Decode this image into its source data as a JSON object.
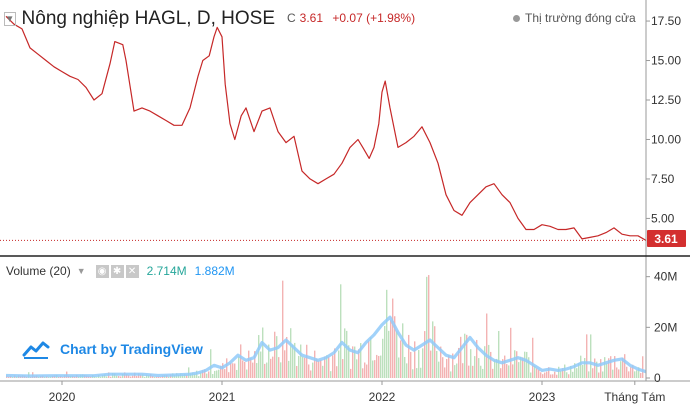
{
  "header": {
    "title": "Nông nghiệp HAGL, D, HOSE",
    "close_label": "C",
    "close_value": "3.61",
    "change": "+0.07 (+1.98%)",
    "market_status": "Thị trường đóng cửa"
  },
  "volume_header": {
    "label": "Volume (20)",
    "value1": "2.714M",
    "value2": "1.882M"
  },
  "watermark": "Chart by TradingView",
  "colors": {
    "price_line": "#c62828",
    "last_price_badge": "#d32f2f",
    "volume_ma": "#90caf9",
    "volume_up": "#a5d6a7",
    "volume_down": "#ef9a9a"
  },
  "chart_data": {
    "type": "line",
    "title": "Nông nghiệp HAGL, D, HOSE",
    "x_tick_labels": [
      "2020",
      "2021",
      "2022",
      "2023",
      "Tháng Tám"
    ],
    "x_range": [
      2019.65,
      2023.65
    ],
    "price_axis": {
      "ticks": [
        17.5,
        15.0,
        12.5,
        10.0,
        7.5,
        5.0
      ],
      "tick_labels": [
        "17.50",
        "15.00",
        "12.50",
        "10.00",
        "7.50",
        "5.00"
      ],
      "ylim": [
        3.0,
        18.2
      ]
    },
    "last_price": 3.61,
    "last_price_label": "3.61",
    "price_series": {
      "name": "Close",
      "x": [
        2019.65,
        2019.7,
        2019.75,
        2019.8,
        2019.85,
        2019.9,
        2019.95,
        2020.0,
        2020.05,
        2020.1,
        2020.15,
        2020.2,
        2020.25,
        2020.3,
        2020.33,
        2020.38,
        2020.4,
        2020.45,
        2020.5,
        2020.55,
        2020.6,
        2020.65,
        2020.7,
        2020.75,
        2020.8,
        2020.85,
        2020.88,
        2020.92,
        2020.95,
        2020.97,
        2021.0,
        2021.02,
        2021.05,
        2021.08,
        2021.12,
        2021.15,
        2021.2,
        2021.25,
        2021.3,
        2021.35,
        2021.4,
        2021.45,
        2021.5,
        2021.55,
        2021.6,
        2021.65,
        2021.7,
        2021.75,
        2021.8,
        2021.85,
        2021.88,
        2021.92,
        2021.95,
        2021.98,
        2022.0,
        2022.02,
        2022.05,
        2022.1,
        2022.15,
        2022.2,
        2022.25,
        2022.3,
        2022.35,
        2022.4,
        2022.45,
        2022.5,
        2022.55,
        2022.6,
        2022.65,
        2022.7,
        2022.75,
        2022.8,
        2022.85,
        2022.9,
        2022.95,
        2023.0,
        2023.05,
        2023.1,
        2023.15,
        2023.2,
        2023.25,
        2023.3,
        2023.35,
        2023.4,
        2023.45,
        2023.5,
        2023.55,
        2023.6,
        2023.65
      ],
      "y": [
        17.8,
        17.3,
        17.0,
        15.8,
        15.4,
        15.0,
        14.6,
        14.3,
        14.0,
        13.8,
        13.3,
        12.5,
        12.9,
        14.8,
        16.2,
        16.0,
        15.0,
        11.8,
        12.0,
        11.8,
        11.5,
        11.2,
        10.9,
        10.9,
        12.0,
        14.0,
        15.0,
        15.3,
        16.5,
        17.1,
        16.5,
        13.5,
        11.0,
        10.0,
        11.5,
        12.0,
        10.5,
        11.8,
        12.0,
        10.5,
        9.8,
        10.2,
        8.0,
        7.5,
        7.2,
        7.5,
        7.8,
        8.5,
        9.5,
        10.0,
        9.5,
        8.8,
        9.5,
        11.0,
        13.0,
        13.7,
        12.0,
        9.5,
        9.8,
        10.2,
        10.8,
        9.8,
        8.5,
        6.5,
        5.5,
        5.2,
        6.0,
        6.5,
        7.0,
        7.2,
        6.5,
        6.0,
        5.0,
        4.3,
        4.3,
        4.6,
        4.5,
        4.3,
        4.3,
        4.4,
        3.7,
        3.8,
        3.9,
        4.1,
        4.4,
        4.0,
        3.9,
        3.9,
        3.61
      ]
    },
    "volume_axis": {
      "ticks": [
        40,
        20,
        0
      ],
      "tick_labels": [
        "40M",
        "20M",
        "0"
      ],
      "ylim": [
        0,
        45
      ]
    },
    "volume_ma_series": {
      "name": "Volume MA (20)",
      "x": [
        2019.65,
        2019.8,
        2019.95,
        2020.1,
        2020.2,
        2020.3,
        2020.4,
        2020.5,
        2020.6,
        2020.7,
        2020.8,
        2020.85,
        2020.9,
        2020.95,
        2021.0,
        2021.05,
        2021.1,
        2021.15,
        2021.2,
        2021.25,
        2021.3,
        2021.35,
        2021.4,
        2021.45,
        2021.5,
        2021.55,
        2021.6,
        2021.65,
        2021.7,
        2021.75,
        2021.8,
        2021.85,
        2021.9,
        2021.95,
        2022.0,
        2022.05,
        2022.1,
        2022.15,
        2022.2,
        2022.25,
        2022.3,
        2022.35,
        2022.4,
        2022.45,
        2022.5,
        2022.55,
        2022.6,
        2022.65,
        2022.7,
        2022.75,
        2022.8,
        2022.85,
        2022.9,
        2022.95,
        2023.0,
        2023.05,
        2023.1,
        2023.15,
        2023.2,
        2023.25,
        2023.3,
        2023.35,
        2023.4,
        2023.45,
        2023.5,
        2023.55,
        2023.6,
        2023.65
      ],
      "y": [
        1.0,
        0.8,
        0.9,
        0.9,
        0.9,
        1.5,
        1.5,
        1.5,
        1.0,
        1.2,
        1.5,
        2.0,
        3.0,
        5.0,
        4.0,
        6.0,
        9.0,
        7.0,
        8.0,
        14.0,
        11.0,
        12.0,
        15.0,
        12.0,
        9.0,
        8.0,
        7.0,
        8.0,
        10.0,
        14.0,
        11.0,
        10.0,
        14.0,
        17.0,
        21.0,
        24.0,
        18.0,
        13.0,
        11.0,
        13.0,
        15.0,
        12.0,
        9.0,
        8.0,
        12.0,
        16.0,
        12.0,
        9.0,
        7.0,
        6.0,
        7.0,
        8.0,
        7.0,
        5.0,
        3.0,
        3.5,
        3.0,
        3.5,
        4.5,
        6.0,
        6.0,
        5.0,
        6.0,
        7.0,
        7.5,
        5.0,
        3.5,
        2.5
      ]
    }
  }
}
